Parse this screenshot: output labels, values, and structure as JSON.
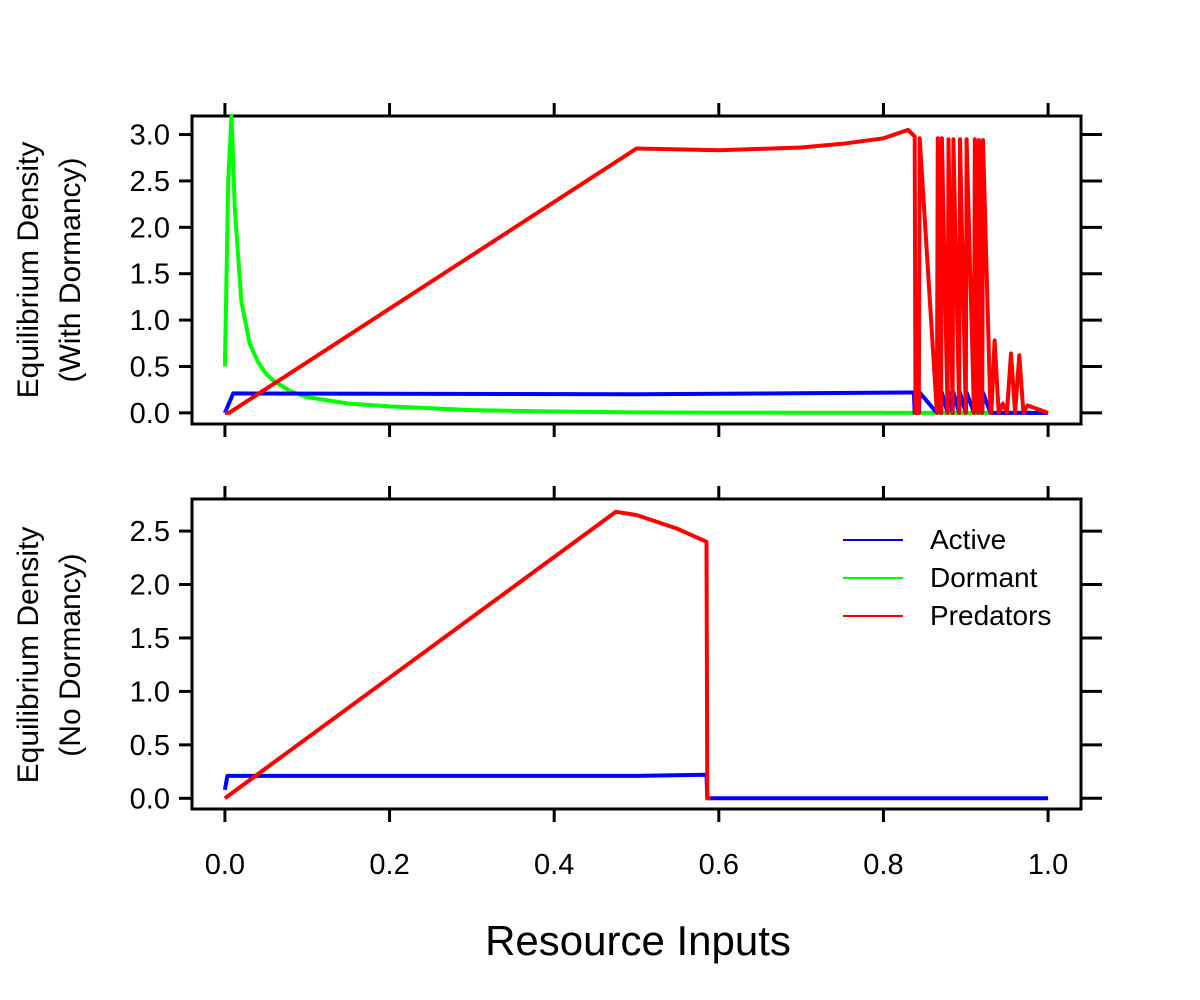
{
  "figure": {
    "xlabel": "Resource Inputs",
    "colors": {
      "active": "#0000ff",
      "dormant": "#00ff00",
      "predators": "#ff0000"
    }
  },
  "legend": {
    "placement": "top-right",
    "entries": [
      {
        "label": "Active",
        "color": "#0000ff"
      },
      {
        "label": "Dormant",
        "color": "#00ff00"
      },
      {
        "label": "Predators",
        "color": "#ff0000"
      }
    ]
  },
  "chart_data": [
    {
      "type": "line",
      "panel": "top",
      "ylabel_line1": "Equilibrium Density",
      "ylabel_line2": "(With Dormancy)",
      "xlabel": "",
      "xlim": [
        -0.04,
        1.04
      ],
      "ylim": [
        -0.12,
        3.2
      ],
      "xticks": [
        "0.0",
        "0.2",
        "0.4",
        "0.6",
        "0.8",
        "1.0"
      ],
      "yticks": [
        "0.0",
        "0.5",
        "1.0",
        "1.5",
        "2.0",
        "2.5",
        "3.0"
      ],
      "series": [
        {
          "key": "dormant",
          "color": "#00ff00",
          "x": [
            0.0,
            0.004,
            0.008,
            0.012,
            0.02,
            0.03,
            0.04,
            0.05,
            0.06,
            0.08,
            0.1,
            0.15,
            0.2,
            0.3,
            0.4,
            0.5,
            0.6,
            0.7,
            0.8,
            0.86,
            1.0
          ],
          "y": [
            0.5,
            2.5,
            3.2,
            2.2,
            1.2,
            0.75,
            0.55,
            0.42,
            0.34,
            0.23,
            0.17,
            0.1,
            0.07,
            0.03,
            0.015,
            0.005,
            0.003,
            0.002,
            0.001,
            0.0,
            0.0
          ]
        },
        {
          "key": "active",
          "color": "#0000ff",
          "x": [
            0.0,
            0.01,
            0.5,
            0.83,
            0.837,
            0.838,
            0.843,
            0.844,
            0.865,
            0.866,
            0.87,
            0.871,
            0.878,
            0.879,
            0.884,
            0.885,
            0.892,
            0.893,
            0.9,
            0.901,
            0.91,
            0.911,
            0.92,
            0.921,
            0.93,
            0.931,
            1.0
          ],
          "y": [
            0.0,
            0.21,
            0.2,
            0.22,
            0.22,
            0.0,
            0.0,
            0.22,
            0.0,
            0.22,
            0.0,
            0.22,
            0.0,
            0.22,
            0.0,
            0.22,
            0.0,
            0.22,
            0.0,
            0.22,
            0.0,
            0.22,
            0.0,
            0.22,
            0.0,
            0.0,
            0.0
          ]
        },
        {
          "key": "predators",
          "color": "#ff0000",
          "x": [
            0.0,
            0.005,
            0.5,
            0.6,
            0.7,
            0.75,
            0.8,
            0.83,
            0.838,
            0.839,
            0.843,
            0.844,
            0.865,
            0.866,
            0.87,
            0.871,
            0.878,
            0.879,
            0.884,
            0.885,
            0.892,
            0.893,
            0.9,
            0.901,
            0.91,
            0.911,
            0.915,
            0.916,
            0.92,
            0.921,
            0.93,
            0.931,
            0.935,
            0.94,
            0.945,
            0.95,
            0.955,
            0.96,
            0.965,
            0.97,
            0.975,
            1.0
          ],
          "y": [
            0.0,
            0.0,
            2.85,
            2.83,
            2.86,
            2.9,
            2.96,
            3.05,
            2.98,
            0.0,
            0.0,
            2.96,
            0.0,
            2.96,
            0.0,
            2.96,
            0.0,
            2.95,
            0.0,
            2.95,
            0.0,
            2.95,
            0.0,
            2.95,
            0.0,
            2.95,
            0.0,
            2.94,
            0.0,
            2.94,
            0.0,
            0.0,
            0.78,
            0.0,
            0.1,
            0.0,
            0.64,
            0.0,
            0.62,
            0.0,
            0.08,
            0.0
          ]
        }
      ]
    },
    {
      "type": "line",
      "panel": "bottom",
      "ylabel_line1": "Equilibrium Density",
      "ylabel_line2": "(No Dormancy)",
      "xlabel": "Resource Inputs",
      "xlim": [
        -0.04,
        1.04
      ],
      "ylim": [
        -0.1,
        2.8
      ],
      "xticks": [
        "0.0",
        "0.2",
        "0.4",
        "0.6",
        "0.8",
        "1.0"
      ],
      "yticks": [
        "0.0",
        "0.5",
        "1.0",
        "1.5",
        "2.0",
        "2.5"
      ],
      "series": [
        {
          "key": "active",
          "color": "#0000ff",
          "x": [
            0.0,
            0.003,
            0.5,
            0.585,
            0.586,
            0.59,
            1.0
          ],
          "y": [
            0.08,
            0.21,
            0.21,
            0.22,
            0.0,
            0.0,
            0.0
          ]
        },
        {
          "key": "predators",
          "color": "#ff0000",
          "x": [
            0.0,
            0.475,
            0.5,
            0.55,
            0.585,
            0.586,
            0.59
          ],
          "y": [
            0.0,
            2.68,
            2.65,
            2.52,
            2.4,
            0.0,
            0.0
          ]
        }
      ]
    }
  ]
}
